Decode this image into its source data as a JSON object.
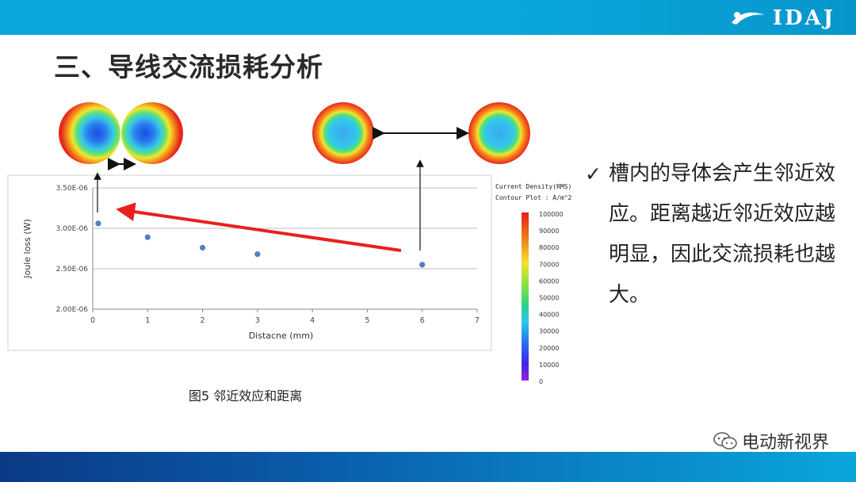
{
  "header": {
    "logo_text": "IDAJ",
    "brand_color": "#0aa7dc"
  },
  "page_title": "三、导线交流损耗分析",
  "bullet_text": "槽内的导体会产生邻近效应。距离越近邻近效应越明显，因此交流损耗也越大。",
  "figure_caption": "图5  邻近效应和距离",
  "watermark": "电动新视界",
  "colorbar": {
    "title_line1": "Current Density(RMS)",
    "title_line2": "Contour Plot : A/m^2",
    "ticks": [
      "100000",
      "90000",
      "80000",
      "70000",
      "60000",
      "50000",
      "40000",
      "30000",
      "20000",
      "10000",
      "0"
    ]
  },
  "chart_data": {
    "type": "scatter",
    "xlabel": "Distacne (mm)",
    "ylabel": "Joule loss (W)",
    "xlim": [
      0,
      7
    ],
    "ylim": [
      2e-06,
      3.5e-06
    ],
    "x_ticks": [
      "0",
      "1",
      "2",
      "3",
      "4",
      "5",
      "6",
      "7"
    ],
    "y_ticks": [
      "2.00E-06",
      "2.50E-06",
      "3.00E-06",
      "3.50E-06"
    ],
    "grid": "horizontal",
    "points": [
      {
        "x": 0.1,
        "y": 3.06e-06
      },
      {
        "x": 1,
        "y": 2.89e-06
      },
      {
        "x": 2,
        "y": 2.76e-06
      },
      {
        "x": 3,
        "y": 2.68e-06
      },
      {
        "x": 6,
        "y": 2.55e-06
      }
    ],
    "marker_color": "#4f81bd",
    "trend_arrow_color": "#e8201e"
  }
}
